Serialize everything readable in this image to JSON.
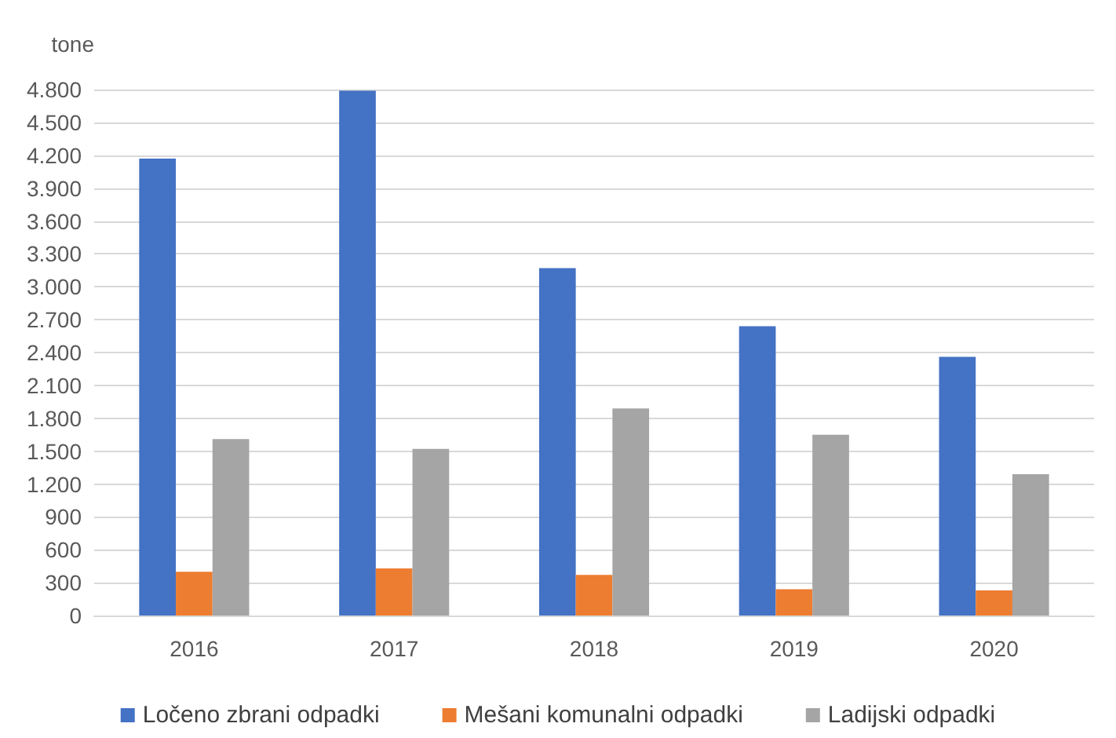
{
  "chart_data": {
    "type": "bar",
    "ylabel": "tone",
    "categories": [
      "2016",
      "2017",
      "2018",
      "2019",
      "2020"
    ],
    "series": [
      {
        "name": "Ločeno zbrani odpadki",
        "color": "#4472c4",
        "values": [
          4170,
          4790,
          3170,
          2640,
          2360
        ]
      },
      {
        "name": "Mešani komunalni odpadki",
        "color": "#ed7d31",
        "values": [
          400,
          430,
          370,
          240,
          230
        ]
      },
      {
        "name": "Ladijski odpadki",
        "color": "#a5a5a5",
        "values": [
          1610,
          1520,
          1890,
          1650,
          1290
        ]
      }
    ],
    "ylim": [
      0,
      4800
    ],
    "yticks": [
      0,
      300,
      600,
      900,
      {
        "value": 1200,
        "label": "1.200"
      },
      {
        "value": 1500,
        "label": "1.500"
      },
      {
        "value": 1800,
        "label": "1.800"
      },
      {
        "value": 2100,
        "label": "2.100"
      },
      {
        "value": 2400,
        "label": "2.400"
      },
      {
        "value": 2700,
        "label": "2.700"
      },
      {
        "value": 3000,
        "label": "3.000"
      },
      {
        "value": 3300,
        "label": "3.300"
      },
      {
        "value": 3600,
        "label": "3.600"
      },
      {
        "value": 3900,
        "label": "3.900"
      },
      {
        "value": 4200,
        "label": "4.200"
      },
      {
        "value": 4500,
        "label": "4.500"
      },
      {
        "value": 4800,
        "label": "4.800"
      }
    ],
    "grid": "y",
    "legend": "bottom"
  }
}
